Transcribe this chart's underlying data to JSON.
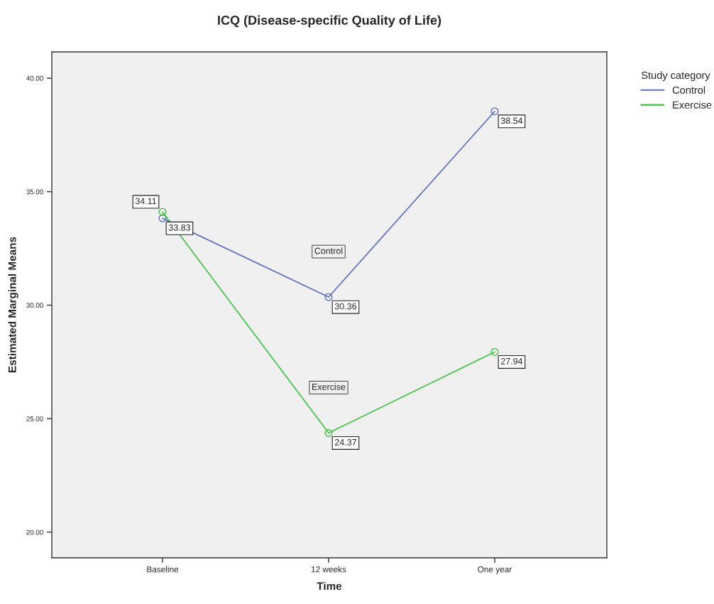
{
  "chart_data": {
    "type": "line",
    "title": "ICQ (Disease-specific Quality of Life)",
    "xlabel": "Time",
    "ylabel": "Estimated Marginal Means",
    "legend_title": "Study category",
    "categories": [
      "Baseline",
      "12 weeks",
      "One year"
    ],
    "series": [
      {
        "name": "Control",
        "color": "#5a6fc4",
        "values": [
          33.83,
          30.36,
          38.54
        ]
      },
      {
        "name": "Exercise",
        "color": "#3fc23f",
        "values": [
          34.11,
          24.37,
          27.94
        ]
      }
    ],
    "ylim": [
      18.87,
      41.16
    ],
    "yticks": [
      {
        "value": 20,
        "label": "20.00"
      },
      {
        "value": 25,
        "label": "25.00"
      },
      {
        "value": 30,
        "label": "30.00"
      },
      {
        "value": 35,
        "label": "35.00"
      },
      {
        "value": 40,
        "label": "40.00"
      }
    ],
    "data_labels": true,
    "marker": "circle",
    "line_style": "solid",
    "grid": false,
    "legend": "top right"
  }
}
